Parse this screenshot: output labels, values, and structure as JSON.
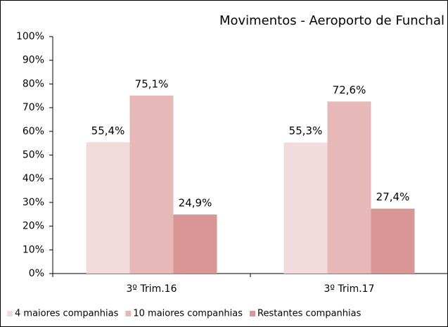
{
  "chart_data": {
    "type": "bar",
    "title": "Movimentos - Aeroporto de Funchal",
    "categories": [
      "3º Trim.16",
      "3º Trim.17"
    ],
    "series": [
      {
        "name": "4 maiores companhias",
        "color": "#f2dcdb",
        "values": [
          55.4,
          55.3
        ],
        "value_labels": [
          "55,4%",
          "55,3%"
        ]
      },
      {
        "name": "10 maiores companhias",
        "color": "#e6b9b8",
        "values": [
          75.1,
          72.6
        ],
        "value_labels": [
          "75,1%",
          "72,6%"
        ]
      },
      {
        "name": "Restantes companhias",
        "color": "#d99694",
        "values": [
          24.9,
          27.4
        ],
        "value_labels": [
          "24,9%",
          "27,4%"
        ]
      }
    ],
    "ylim": [
      0,
      100
    ],
    "yticks": [
      {
        "value": 0,
        "label": "0%"
      },
      {
        "value": 10,
        "label": "10%"
      },
      {
        "value": 20,
        "label": "20%"
      },
      {
        "value": 30,
        "label": "30%"
      },
      {
        "value": 40,
        "label": "40%"
      },
      {
        "value": 50,
        "label": "50%"
      },
      {
        "value": 60,
        "label": "60%"
      },
      {
        "value": 70,
        "label": "70%"
      },
      {
        "value": 80,
        "label": "80%"
      },
      {
        "value": 90,
        "label": "90%"
      },
      {
        "value": 100,
        "label": "100%"
      }
    ],
    "legend": "bottom"
  }
}
